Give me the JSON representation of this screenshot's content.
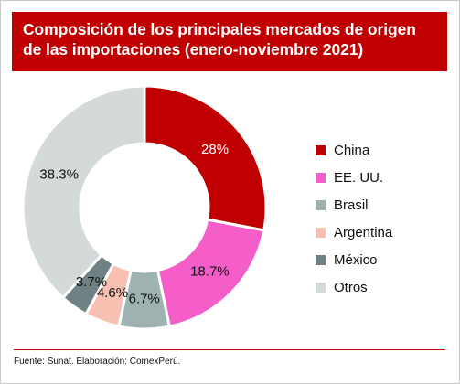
{
  "header": {
    "title_line1": "Composición de los principales mercados de origen",
    "title_line2": "de las importaciones (enero-noviembre 2021)"
  },
  "footer": {
    "source": "Fuente: Sunat. Elaboración: ComexPerú."
  },
  "colors": {
    "title_background": "#c00000",
    "rule": "#c00000"
  },
  "chart_data": {
    "type": "pie",
    "variant": "donut",
    "categories": [
      "China",
      "EE. UU.",
      "Brasil",
      "Argentina",
      "México",
      "Otros"
    ],
    "values": [
      28.0,
      18.7,
      6.7,
      4.6,
      3.7,
      38.3
    ],
    "labels": [
      "28%",
      "18.7%",
      "6.7%",
      "4.6%",
      "3.7%",
      "38.3%"
    ],
    "colors": [
      "#c00000",
      "#f55ec8",
      "#9eb3b1",
      "#f8c0b1",
      "#6f8183",
      "#d4d9d9"
    ],
    "label_colors": [
      "#ffffff",
      "#111111",
      "#111111",
      "#111111",
      "#111111",
      "#111111"
    ],
    "legend_position": "right",
    "unit": "%"
  }
}
